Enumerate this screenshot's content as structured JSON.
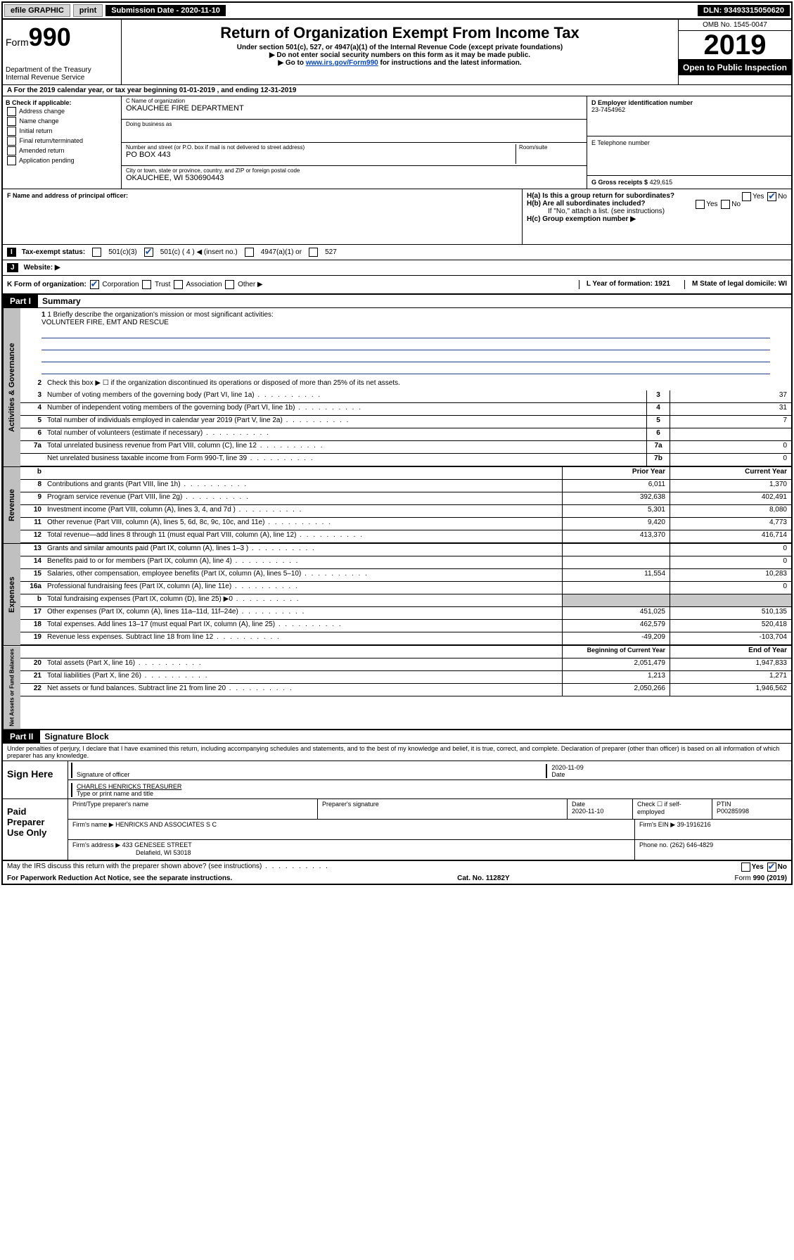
{
  "topbar": {
    "efile": "efile GRAPHIC",
    "print": "print",
    "sub_label": "Submission Date - 2020-11-10",
    "dln": "DLN: 93493315050620"
  },
  "header": {
    "form_prefix": "Form",
    "form_num": "990",
    "dept": "Department of the Treasury",
    "irs": "Internal Revenue Service",
    "title": "Return of Organization Exempt From Income Tax",
    "sub1": "Under section 501(c), 527, or 4947(a)(1) of the Internal Revenue Code (except private foundations)",
    "sub2": "▶ Do not enter social security numbers on this form as it may be made public.",
    "sub3_pre": "▶ Go to ",
    "sub3_link": "www.irs.gov/Form990",
    "sub3_post": " for instructions and the latest information.",
    "omb": "OMB No. 1545-0047",
    "year": "2019",
    "open": "Open to Public Inspection"
  },
  "line_a": "For the 2019 calendar year, or tax year beginning 01-01-2019   , and ending 12-31-2019",
  "box_b": {
    "title": "B Check if applicable:",
    "opts": [
      "Address change",
      "Name change",
      "Initial return",
      "Final return/terminated",
      "Amended return",
      "Application pending"
    ]
  },
  "box_c": {
    "name_label": "C Name of organization",
    "name": "OKAUCHEE FIRE DEPARTMENT",
    "dba_label": "Doing business as",
    "addr_label": "Number and street (or P.O. box if mail is not delivered to street address)",
    "room_label": "Room/suite",
    "addr": "PO BOX 443",
    "city_label": "City or town, state or province, country, and ZIP or foreign postal code",
    "city": "OKAUCHEE, WI  530690443"
  },
  "box_d": {
    "label": "D Employer identification number",
    "val": "23-7454962"
  },
  "box_e": {
    "label": "E Telephone number",
    "val": ""
  },
  "box_g": {
    "label": "G Gross receipts $",
    "val": "429,615"
  },
  "box_f": {
    "label": "F  Name and address of principal officer:"
  },
  "box_h": {
    "a": "H(a)  Is this a group return for subordinates?",
    "b": "H(b)  Are all subordinates included?",
    "b2": "If \"No,\" attach a list. (see instructions)",
    "c": "H(c)  Group exemption number ▶",
    "yes": "Yes",
    "no": "No"
  },
  "row_i": {
    "label": "Tax-exempt status:",
    "o1": "501(c)(3)",
    "o2": "501(c) ( 4 ) ◀ (insert no.)",
    "o3": "4947(a)(1) or",
    "o4": "527"
  },
  "row_j": {
    "label": "Website: ▶"
  },
  "row_klm": {
    "k": "K Form of organization:",
    "k_opts": [
      "Corporation",
      "Trust",
      "Association",
      "Other ▶"
    ],
    "l": "L Year of formation: 1921",
    "m": "M State of legal domicile: WI"
  },
  "part1": {
    "header": "Part I",
    "title": "Summary",
    "line1_label": "1  Briefly describe the organization's mission or most significant activities:",
    "line1_val": "VOLUNTEER FIRE, EMT AND RESCUE",
    "line2": "Check this box ▶ ☐  if the organization discontinued its operations or disposed of more than 25% of its net assets.",
    "rows_ag": [
      {
        "n": "3",
        "d": "Number of voting members of the governing body (Part VI, line 1a)",
        "box": "3",
        "v": "37"
      },
      {
        "n": "4",
        "d": "Number of independent voting members of the governing body (Part VI, line 1b)",
        "box": "4",
        "v": "31"
      },
      {
        "n": "5",
        "d": "Total number of individuals employed in calendar year 2019 (Part V, line 2a)",
        "box": "5",
        "v": "7"
      },
      {
        "n": "6",
        "d": "Total number of volunteers (estimate if necessary)",
        "box": "6",
        "v": ""
      },
      {
        "n": "7a",
        "d": "Total unrelated business revenue from Part VIII, column (C), line 12",
        "box": "7a",
        "v": "0"
      },
      {
        "n": "",
        "d": "Net unrelated business taxable income from Form 990-T, line 39",
        "box": "7b",
        "v": "0"
      }
    ],
    "hdr_b": "b",
    "hdr_prior": "Prior Year",
    "hdr_current": "Current Year",
    "rows_rev": [
      {
        "n": "8",
        "d": "Contributions and grants (Part VIII, line 1h)",
        "p": "6,011",
        "c": "1,370"
      },
      {
        "n": "9",
        "d": "Program service revenue (Part VIII, line 2g)",
        "p": "392,638",
        "c": "402,491"
      },
      {
        "n": "10",
        "d": "Investment income (Part VIII, column (A), lines 3, 4, and 7d )",
        "p": "5,301",
        "c": "8,080"
      },
      {
        "n": "11",
        "d": "Other revenue (Part VIII, column (A), lines 5, 6d, 8c, 9c, 10c, and 11e)",
        "p": "9,420",
        "c": "4,773"
      },
      {
        "n": "12",
        "d": "Total revenue—add lines 8 through 11 (must equal Part VIII, column (A), line 12)",
        "p": "413,370",
        "c": "416,714"
      }
    ],
    "rows_exp": [
      {
        "n": "13",
        "d": "Grants and similar amounts paid (Part IX, column (A), lines 1–3 )",
        "p": "",
        "c": "0"
      },
      {
        "n": "14",
        "d": "Benefits paid to or for members (Part IX, column (A), line 4)",
        "p": "",
        "c": "0"
      },
      {
        "n": "15",
        "d": "Salaries, other compensation, employee benefits (Part IX, column (A), lines 5–10)",
        "p": "11,554",
        "c": "10,283"
      },
      {
        "n": "16a",
        "d": "Professional fundraising fees (Part IX, column (A), line 11e)",
        "p": "",
        "c": "0"
      },
      {
        "n": "b",
        "d": "Total fundraising expenses (Part IX, column (D), line 25) ▶0",
        "p": "GREY",
        "c": "GREY"
      },
      {
        "n": "17",
        "d": "Other expenses (Part IX, column (A), lines 11a–11d, 11f–24e)",
        "p": "451,025",
        "c": "510,135"
      },
      {
        "n": "18",
        "d": "Total expenses. Add lines 13–17 (must equal Part IX, column (A), line 25)",
        "p": "462,579",
        "c": "520,418"
      },
      {
        "n": "19",
        "d": "Revenue less expenses. Subtract line 18 from line 12",
        "p": "-49,209",
        "c": "-103,704"
      }
    ],
    "hdr_boy": "Beginning of Current Year",
    "hdr_eoy": "End of Year",
    "rows_net": [
      {
        "n": "20",
        "d": "Total assets (Part X, line 16)",
        "p": "2,051,479",
        "c": "1,947,833"
      },
      {
        "n": "21",
        "d": "Total liabilities (Part X, line 26)",
        "p": "1,213",
        "c": "1,271"
      },
      {
        "n": "22",
        "d": "Net assets or fund balances. Subtract line 21 from line 20",
        "p": "2,050,266",
        "c": "1,946,562"
      }
    ],
    "vtabs": [
      "Activities & Governance",
      "Revenue",
      "Expenses",
      "Net Assets or Fund Balances"
    ]
  },
  "part2": {
    "header": "Part II",
    "title": "Signature Block",
    "perjury": "Under penalties of perjury, I declare that I have examined this return, including accompanying schedules and statements, and to the best of my knowledge and belief, it is true, correct, and complete. Declaration of preparer (other than officer) is based on all information of which preparer has any knowledge.",
    "sign_here": "Sign Here",
    "sig_officer": "Signature of officer",
    "sig_date": "2020-11-09",
    "date_label": "Date",
    "officer_name": "CHARLES HENRICKS TREASURER",
    "type_name": "Type or print name and title",
    "paid_prep": "Paid Preparer Use Only",
    "prep_name_label": "Print/Type preparer's name",
    "prep_sig_label": "Preparer's signature",
    "prep_date_label": "Date",
    "prep_date": "2020-11-10",
    "check_self": "Check ☐ if self-employed",
    "ptin_label": "PTIN",
    "ptin": "P00285998",
    "firm_name_label": "Firm's name    ▶",
    "firm_name": "HENRICKS AND ASSOCIATES S C",
    "firm_ein_label": "Firm's EIN ▶",
    "firm_ein": "39-1916216",
    "firm_addr_label": "Firm's address ▶",
    "firm_addr1": "433 GENESEE STREET",
    "firm_addr2": "Delafield, WI  53018",
    "phone_label": "Phone no.",
    "phone": "(262) 646-4829",
    "discuss": "May the IRS discuss this return with the preparer shown above? (see instructions)"
  },
  "footer": {
    "pra": "For Paperwork Reduction Act Notice, see the separate instructions.",
    "cat": "Cat. No. 11282Y",
    "form": "Form 990 (2019)"
  }
}
